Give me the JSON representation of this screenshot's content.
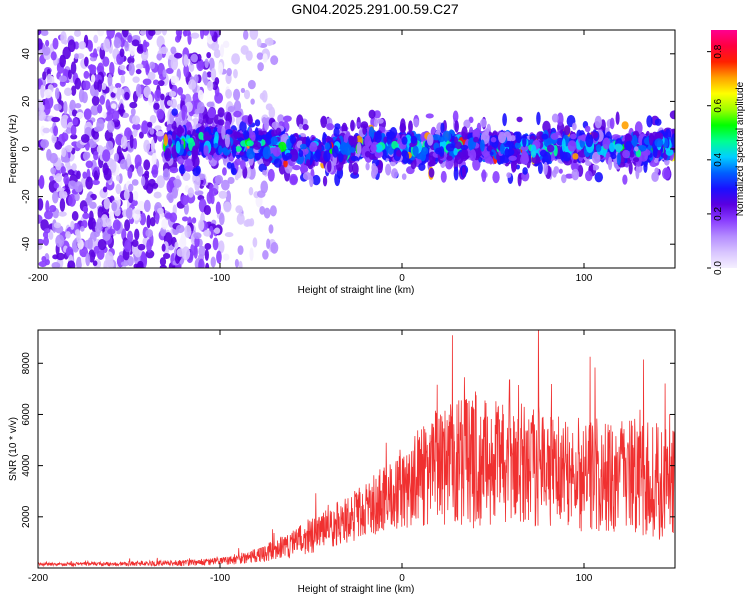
{
  "title": "GN04.2025.291.00.59.C27",
  "chart_data": [
    {
      "type": "heatmap",
      "xlabel": "Height of straight line (km)",
      "ylabel": "Frequency (Hz)",
      "xlim": [
        -200,
        150
      ],
      "ylim": [
        -50,
        50
      ],
      "x_ticks": [
        -200,
        -100,
        0,
        100
      ],
      "y_ticks": [
        -40,
        -20,
        0,
        20,
        40
      ],
      "colorbar": {
        "label": "Normalized spectral amplitude",
        "range": [
          0,
          0.88
        ],
        "ticks": [
          0.0,
          0.2,
          0.4,
          0.6,
          0.8
        ],
        "colors": [
          "#f5f0ff",
          "#d8c4ff",
          "#b48cff",
          "#8a3dff",
          "#5a00e0",
          "#1a10ff",
          "#0060ff",
          "#00d0ff",
          "#00ff90",
          "#00ff00",
          "#a0ff00",
          "#ffff00",
          "#ffa000",
          "#ff2000",
          "#ff0040",
          "#ff0090"
        ]
      },
      "dense_band_center_x": [
        -130,
        -120,
        -110,
        -100,
        -90,
        -80,
        -70,
        -60,
        -50,
        -40,
        -30,
        -20,
        -10,
        0,
        10,
        20,
        30,
        40,
        50,
        60,
        70,
        80,
        90,
        100,
        110,
        120,
        130,
        140,
        150
      ],
      "dense_band_center_y": [
        2,
        3,
        3,
        3,
        2,
        2,
        1,
        0,
        -1,
        -1,
        0,
        2,
        2,
        0,
        1,
        1,
        1,
        2,
        1,
        0,
        0,
        1,
        0,
        1,
        1,
        0,
        0,
        1,
        2
      ],
      "grid": false
    },
    {
      "type": "line",
      "xlabel": "Height of straight line (km)",
      "ylabel": "SNR (10 * v/v)",
      "xlim": [
        -200,
        150
      ],
      "ylim": [
        0,
        9300
      ],
      "x_ticks": [
        -200,
        -100,
        0,
        100
      ],
      "y_ticks": [
        2000,
        4000,
        6000,
        8000
      ],
      "color": "#f03030",
      "envelope_x": [
        -200,
        -180,
        -160,
        -140,
        -120,
        -100,
        -90,
        -80,
        -70,
        -60,
        -50,
        -40,
        -30,
        -20,
        -10,
        0,
        10,
        20,
        30,
        40,
        50,
        60,
        70,
        80,
        90,
        100,
        110,
        120,
        130,
        140,
        150
      ],
      "envelope_mean": [
        150,
        150,
        160,
        180,
        200,
        250,
        350,
        500,
        700,
        950,
        1250,
        1550,
        1900,
        2300,
        2700,
        3100,
        3500,
        4000,
        4200,
        4300,
        4100,
        4000,
        4100,
        3900,
        3800,
        3700,
        3600,
        3600,
        3500,
        3400,
        3300
      ],
      "envelope_amp": [
        60,
        70,
        80,
        100,
        120,
        150,
        200,
        280,
        400,
        550,
        700,
        800,
        950,
        1100,
        1300,
        1600,
        1900,
        2300,
        2600,
        2800,
        2500,
        2400,
        2500,
        2300,
        2200,
        2300,
        2200,
        2200,
        2300,
        2300,
        2200
      ],
      "grid": false
    }
  ]
}
